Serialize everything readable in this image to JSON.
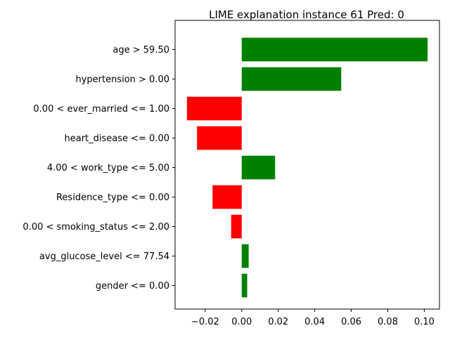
{
  "chart_data": {
    "type": "bar",
    "orientation": "horizontal",
    "title": "LIME explanation instance 61 Pred: 0",
    "xlabel": "",
    "ylabel": "",
    "xlim": [
      -0.0365,
      0.1083
    ],
    "xticks": [
      -0.02,
      0.0,
      0.02,
      0.04,
      0.06,
      0.08,
      0.1
    ],
    "xtick_labels": [
      "−0.02",
      "0.00",
      "0.02",
      "0.04",
      "0.06",
      "0.08",
      "0.10"
    ],
    "grid": false,
    "legend": null,
    "categories": [
      "age > 59.50",
      "hypertension > 0.00",
      "0.00 < ever_married <= 1.00",
      "heart_disease <= 0.00",
      "4.00 < work_type <= 5.00",
      "Residence_type <= 0.00",
      "0.00 < smoking_status <= 2.00",
      "avg_glucose_level <= 77.54",
      "gender <= 0.00"
    ],
    "values": [
      0.1018,
      0.0545,
      -0.03,
      -0.0245,
      0.0183,
      -0.016,
      -0.0058,
      0.0038,
      0.003
    ],
    "positive_color": "#008000",
    "negative_color": "#ff0000"
  }
}
